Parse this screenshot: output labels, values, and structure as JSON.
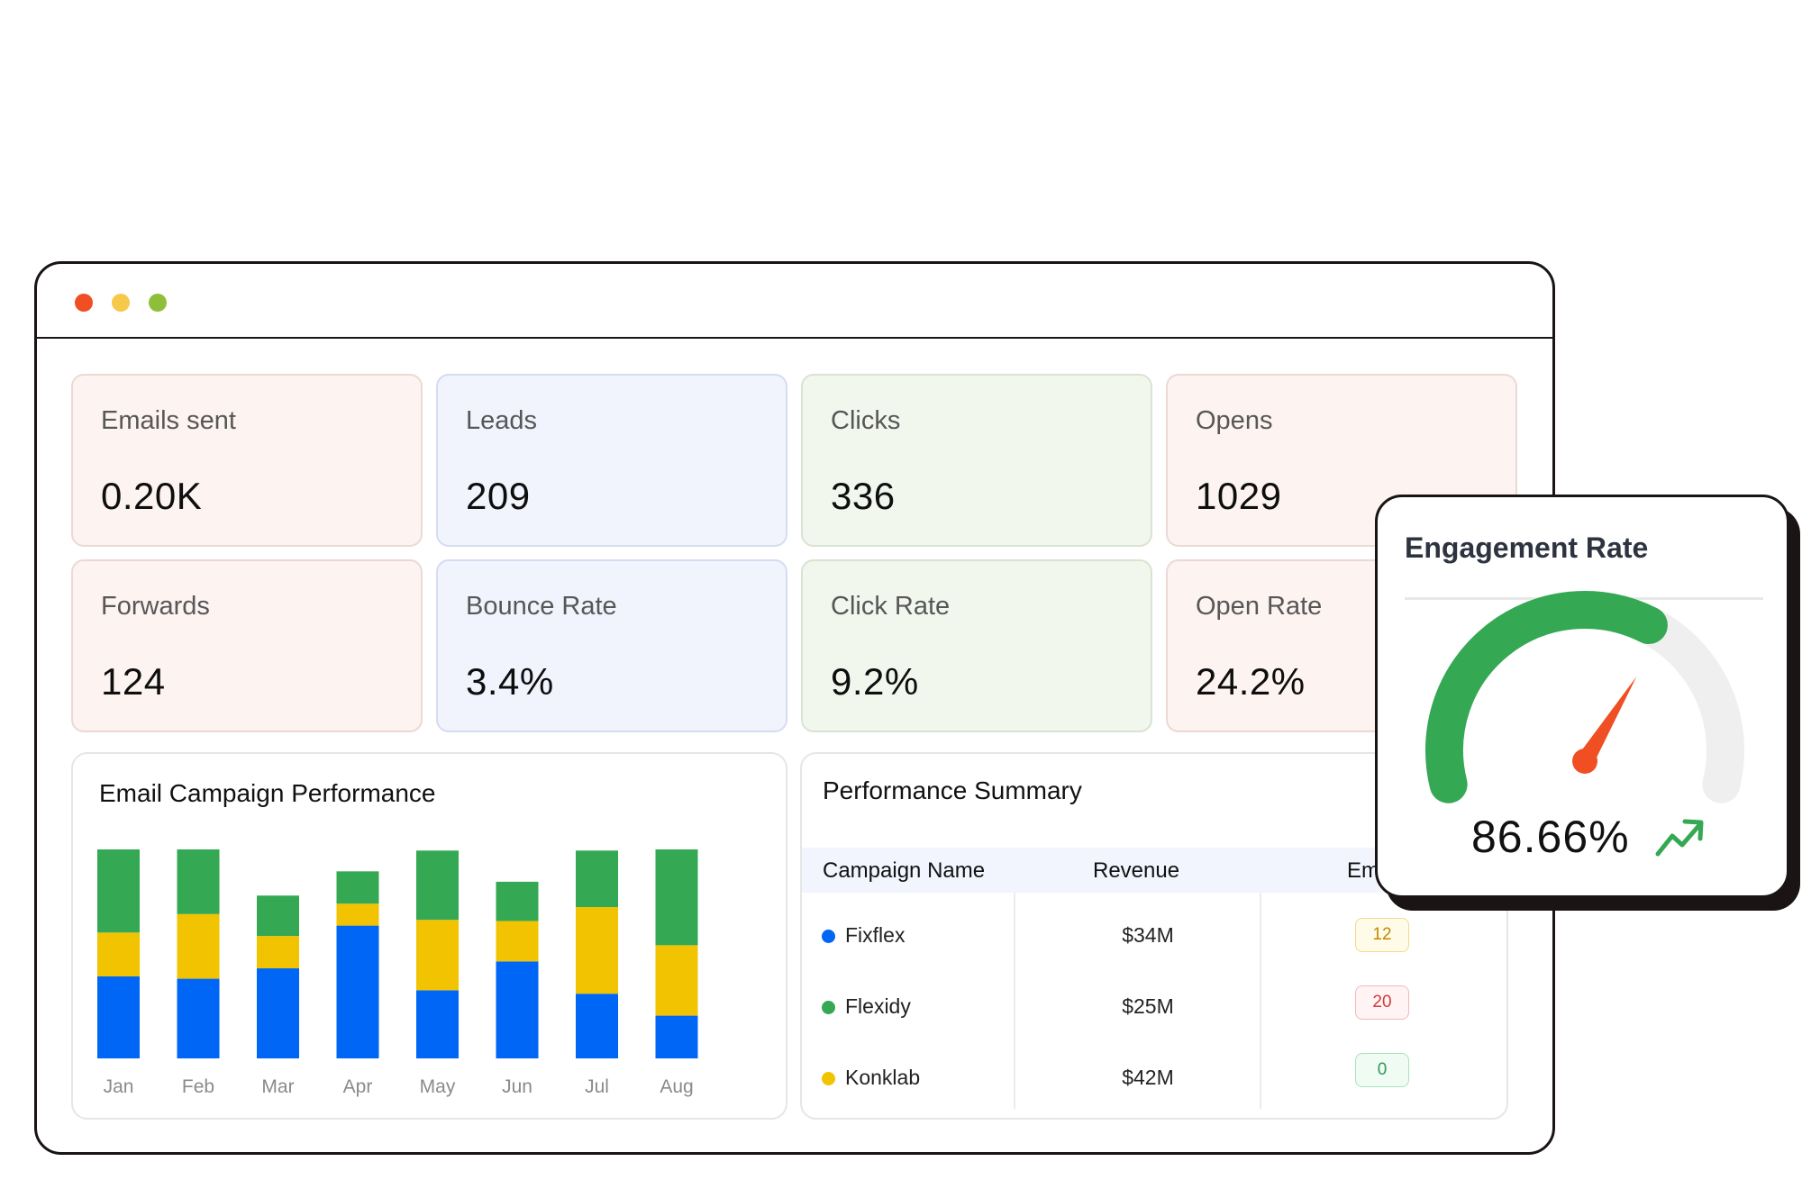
{
  "metrics": [
    {
      "label": "Emails sent",
      "value": "0.20K"
    },
    {
      "label": "Leads",
      "value": "209"
    },
    {
      "label": "Clicks",
      "value": "336"
    },
    {
      "label": "Opens",
      "value": "1029"
    },
    {
      "label": "Forwards",
      "value": "124"
    },
    {
      "label": "Bounce Rate",
      "value": "3.4%"
    },
    {
      "label": "Click Rate",
      "value": "9.2%"
    },
    {
      "label": "Open Rate",
      "value": "24.2%"
    }
  ],
  "chart_title": "Email Campaign Performance",
  "chart_data": {
    "type": "bar",
    "stacked": true,
    "categories": [
      "Jan",
      "Feb",
      "Mar",
      "Apr",
      "May",
      "Jun",
      "Jul",
      "Aug"
    ],
    "series": [
      {
        "color": "#0066f5",
        "values": [
          71,
          69,
          78,
          115,
          59,
          84,
          56,
          37
        ]
      },
      {
        "color": "#f2c300",
        "values": [
          38,
          56,
          28,
          19,
          61,
          35,
          75,
          61
        ]
      },
      {
        "color": "#34a853",
        "values": [
          72,
          56,
          35,
          28,
          60,
          34,
          49,
          83
        ]
      }
    ],
    "ylim": [
      0,
      181
    ],
    "grid": false
  },
  "summary": {
    "title": "Performance Summary",
    "columns": [
      "Campaign Name",
      "Revenue",
      "Em"
    ],
    "rows": [
      {
        "name": "Fixflex",
        "dot_color": "#0066f5",
        "revenue": "$34M",
        "badge": "12",
        "badge_style": "yellow"
      },
      {
        "name": "Flexidy",
        "dot_color": "#34a853",
        "revenue": "$25M",
        "badge": "20",
        "badge_style": "red"
      },
      {
        "name": "Konklab",
        "dot_color": "#f2c300",
        "revenue": "$42M",
        "badge": "0",
        "badge_style": "green"
      }
    ]
  },
  "engagement": {
    "title": "Engagement Rate",
    "value": "86.66%",
    "fraction": 0.8666,
    "trend_icon": "trending-up-icon",
    "colors": {
      "fill": "#34a853",
      "track": "#efefef",
      "needle": "#f04e23"
    }
  },
  "window_controls": {
    "close": "#f04e23",
    "minimize": "#f6c94a",
    "maximize": "#8fbf3a"
  }
}
